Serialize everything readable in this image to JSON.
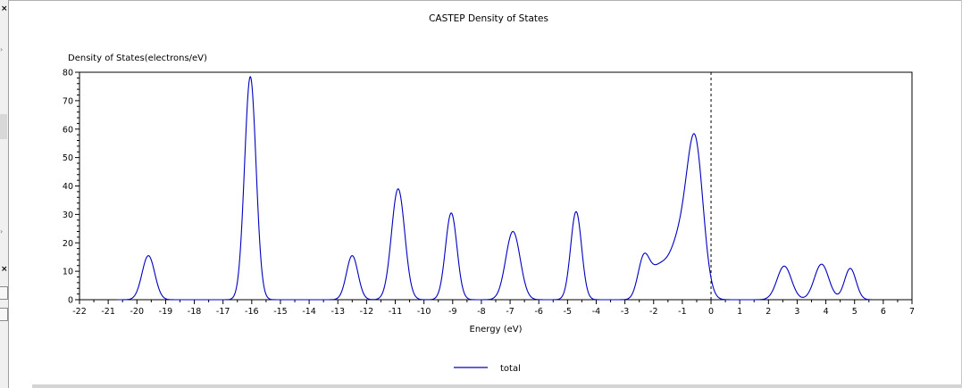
{
  "window": {
    "close_glyph": "×",
    "icons": [
      "close-icon",
      "scroll-arrow-icon",
      "checkbox-icon"
    ]
  },
  "chart_data": {
    "type": "line",
    "title": "CASTEP Density of States",
    "ylabel": "Density of States(electrons/eV)",
    "xlabel": "Energy (eV)",
    "xlim": [
      -22,
      7
    ],
    "ylim": [
      0,
      80
    ],
    "x_ticks": [
      -22,
      -21,
      -20,
      -19,
      -18,
      -17,
      -16,
      -15,
      -14,
      -13,
      -12,
      -11,
      -10,
      -9,
      -8,
      -7,
      -6,
      -5,
      -4,
      -3,
      -2,
      -1,
      0,
      1,
      2,
      3,
      4,
      5,
      6,
      7
    ],
    "y_ticks": [
      0,
      10,
      20,
      30,
      40,
      50,
      60,
      70,
      80
    ],
    "fermi_level": 0,
    "grid": false,
    "legend_position": "bottom-center",
    "colors": {
      "series": "#0000c0",
      "axes": "#000000",
      "fermi_line": "#000000"
    },
    "series": [
      {
        "name": "total",
        "peaks": [
          {
            "center": -19.6,
            "height": 15.5,
            "width": 0.22
          },
          {
            "center": -16.05,
            "height": 78.5,
            "width": 0.2
          },
          {
            "center": -12.5,
            "height": 15.5,
            "width": 0.2
          },
          {
            "center": -10.9,
            "height": 39,
            "width": 0.23
          },
          {
            "center": -9.05,
            "height": 30.5,
            "width": 0.2
          },
          {
            "center": -6.9,
            "height": 24,
            "width": 0.25
          },
          {
            "center": -4.7,
            "height": 31,
            "width": 0.19
          },
          {
            "center": -2.35,
            "height": 13.5,
            "width": 0.2
          },
          {
            "center": -1.85,
            "height": 10,
            "width": 0.3
          },
          {
            "center": -1.1,
            "height": 20,
            "width": 0.35
          },
          {
            "center": -0.55,
            "height": 52,
            "width": 0.28
          },
          {
            "center": 2.55,
            "height": 11.8,
            "width": 0.25
          },
          {
            "center": 3.85,
            "height": 12.5,
            "width": 0.25
          },
          {
            "center": 4.85,
            "height": 11,
            "width": 0.2
          }
        ]
      }
    ]
  }
}
